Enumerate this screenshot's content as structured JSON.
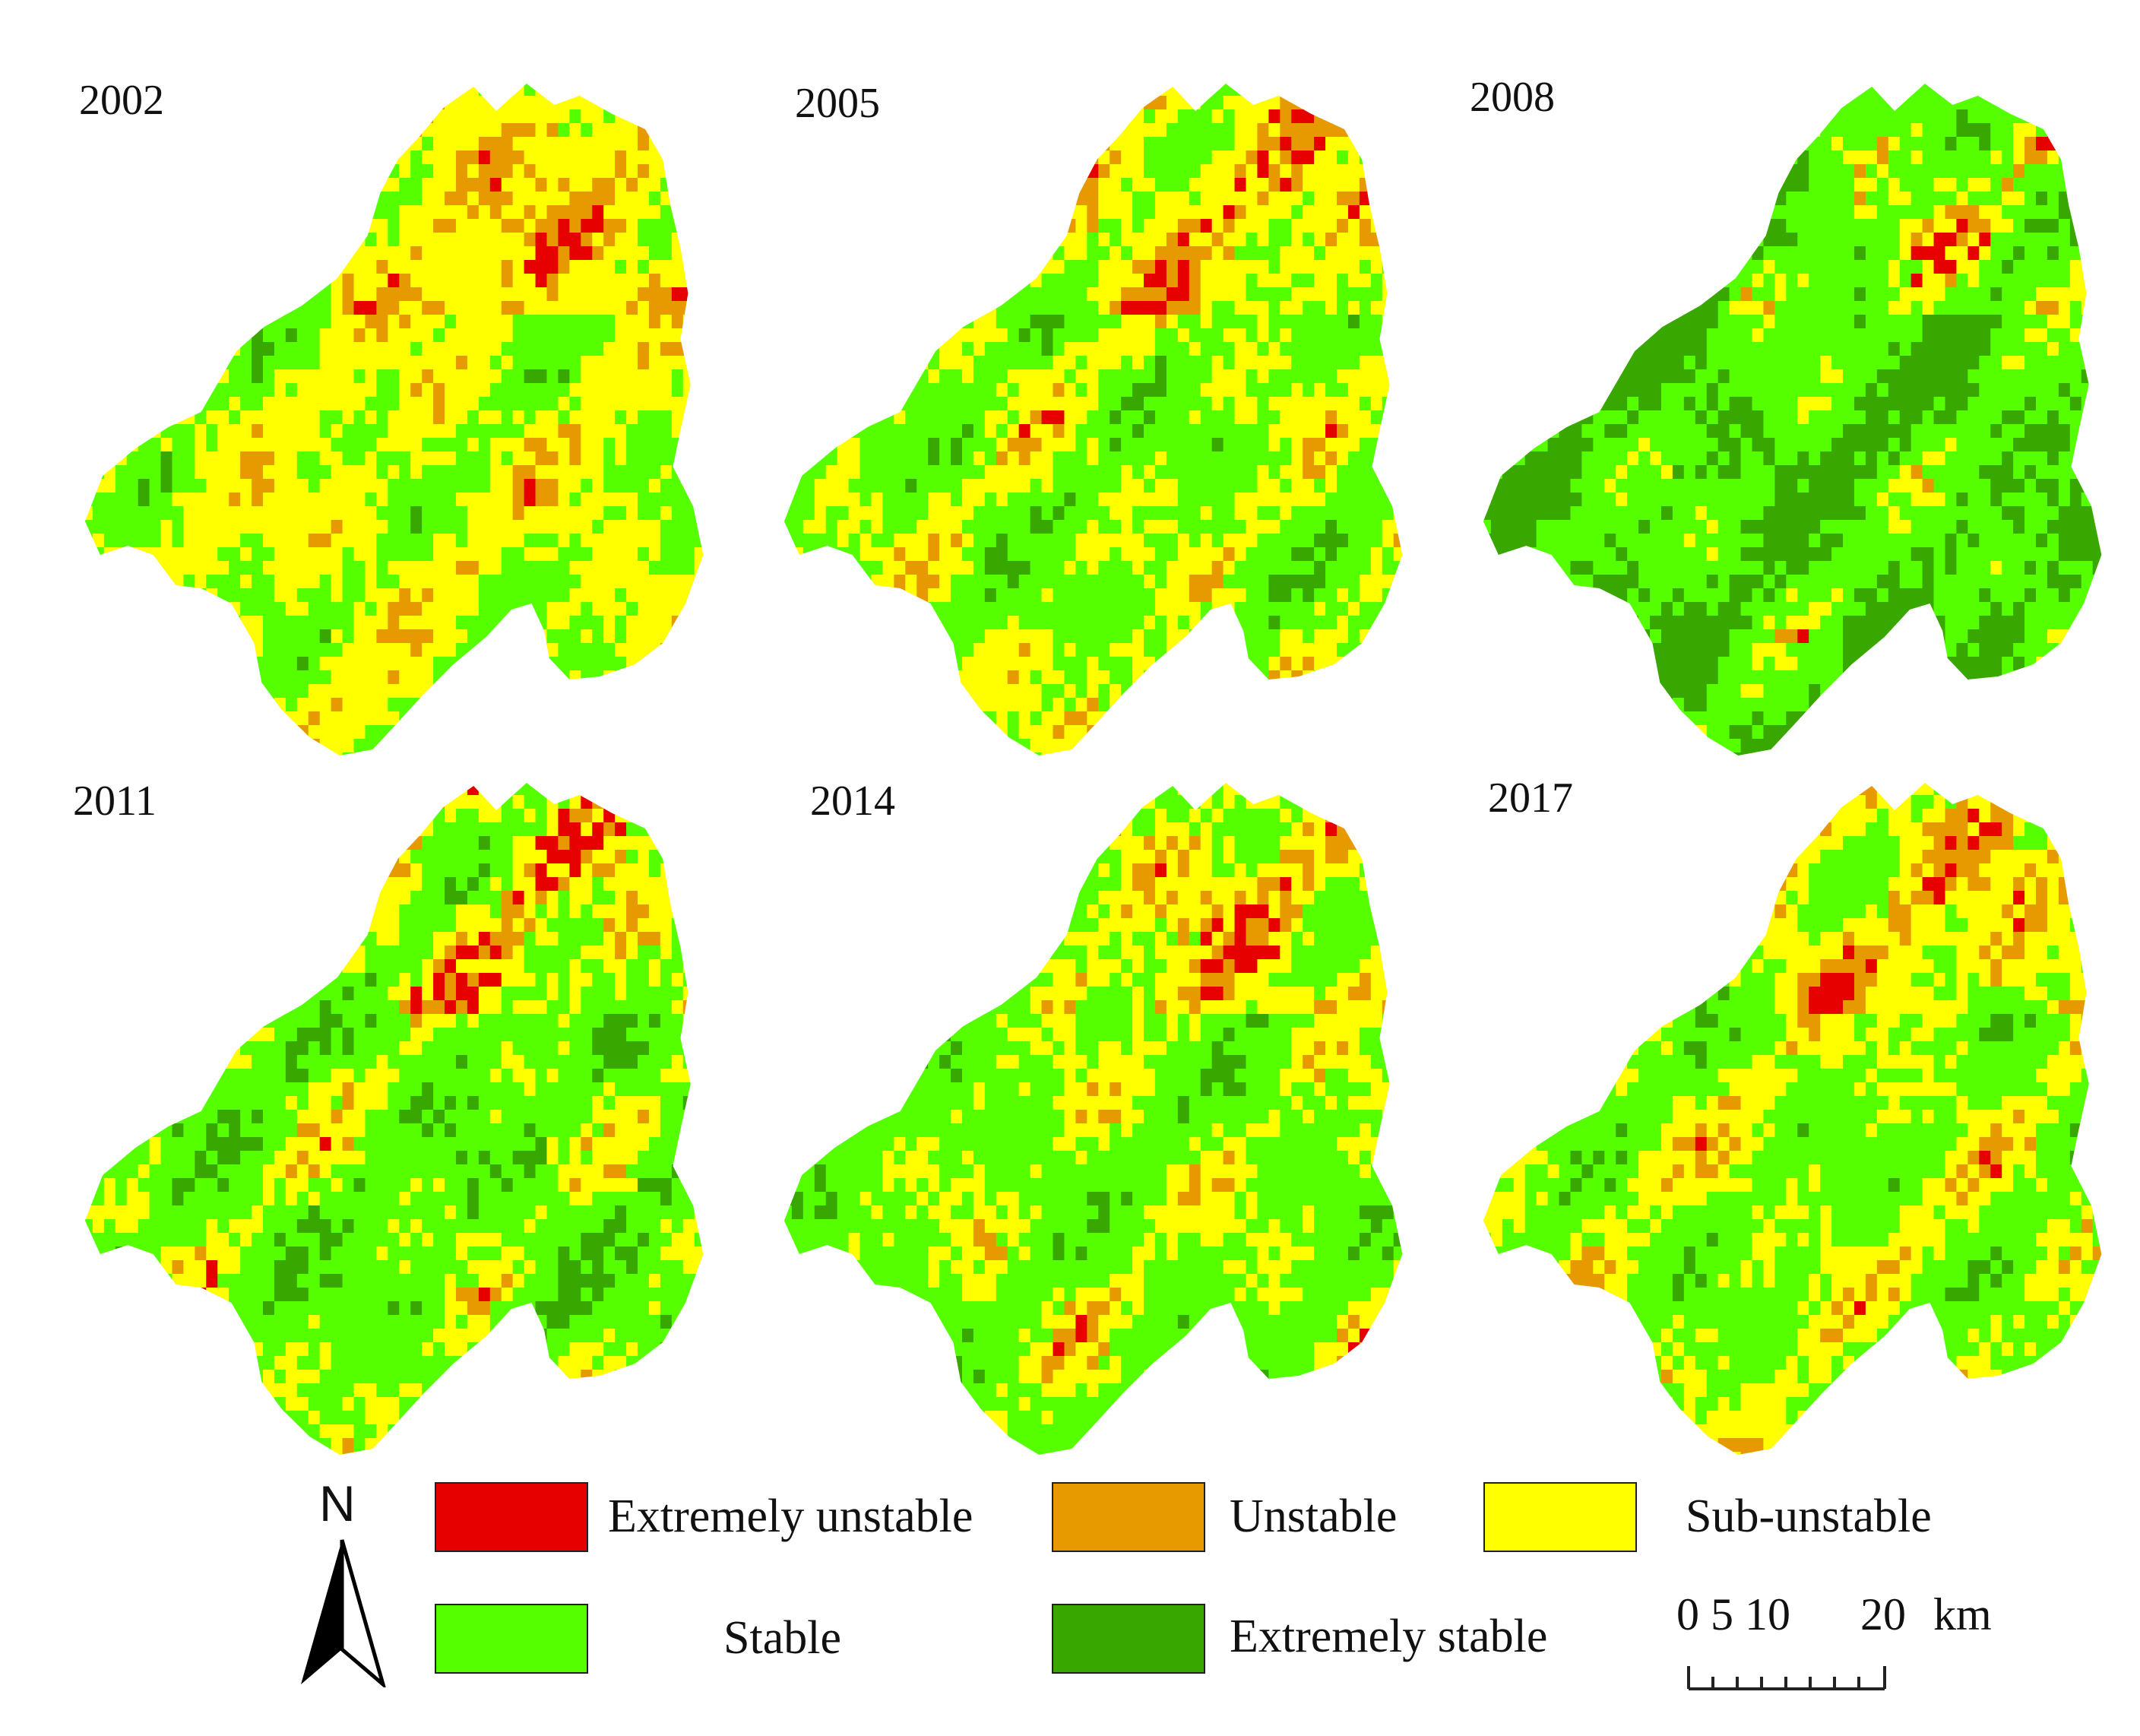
{
  "panels": [
    {
      "year": "2002",
      "stability_mix": {
        "extremely_unstable": 0.07,
        "unstable": 0.16,
        "sub_unstable": 0.33,
        "stable": 0.33,
        "extremely_stable": 0.11
      }
    },
    {
      "year": "2005",
      "stability_mix": {
        "extremely_unstable": 0.06,
        "unstable": 0.13,
        "sub_unstable": 0.25,
        "stable": 0.33,
        "extremely_stable": 0.23
      }
    },
    {
      "year": "2008",
      "stability_mix": {
        "extremely_unstable": 0.03,
        "unstable": 0.07,
        "sub_unstable": 0.13,
        "stable": 0.35,
        "extremely_stable": 0.42
      }
    },
    {
      "year": "2011",
      "stability_mix": {
        "extremely_unstable": 0.07,
        "unstable": 0.09,
        "sub_unstable": 0.2,
        "stable": 0.34,
        "extremely_stable": 0.3
      }
    },
    {
      "year": "2014",
      "stability_mix": {
        "extremely_unstable": 0.07,
        "unstable": 0.12,
        "sub_unstable": 0.22,
        "stable": 0.42,
        "extremely_stable": 0.17
      }
    },
    {
      "year": "2017",
      "stability_mix": {
        "extremely_unstable": 0.06,
        "unstable": 0.15,
        "sub_unstable": 0.24,
        "stable": 0.38,
        "extremely_stable": 0.17
      }
    }
  ],
  "legend": {
    "items": [
      {
        "key": "extremely_unstable",
        "label": "Extremely unstable",
        "color": "#e60000"
      },
      {
        "key": "unstable",
        "label": "Unstable",
        "color": "#e69a00"
      },
      {
        "key": "sub_unstable",
        "label": "Sub-unstable",
        "color": "#ffff00"
      },
      {
        "key": "stable",
        "label": "Stable",
        "color": "#55ff00"
      },
      {
        "key": "extremely_stable",
        "label": "Extremely stable",
        "color": "#38a800"
      }
    ]
  },
  "north_arrow": {
    "label": "N",
    "icon": "north-arrow-icon"
  },
  "scale_bar": {
    "ticks_text": "0 5 10",
    "end_text": "20",
    "unit": "km"
  }
}
